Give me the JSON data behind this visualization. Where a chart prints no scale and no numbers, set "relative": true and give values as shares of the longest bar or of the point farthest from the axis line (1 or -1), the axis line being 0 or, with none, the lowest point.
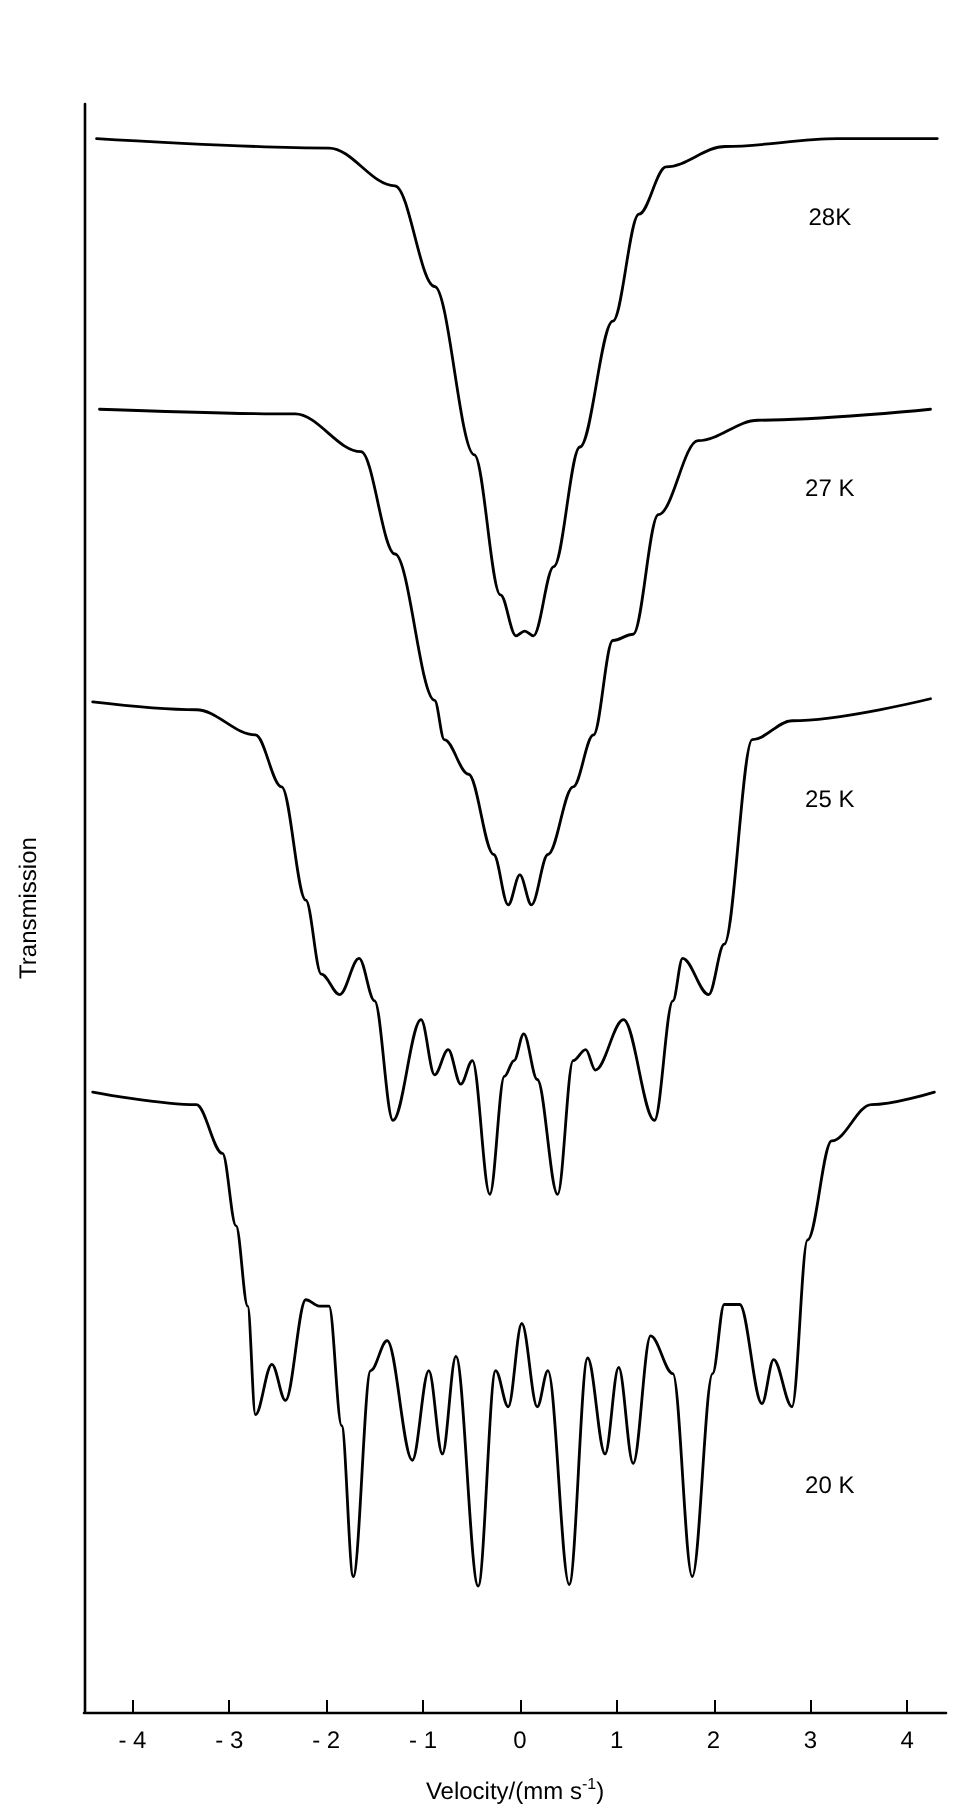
{
  "chart_data": {
    "type": "line",
    "relative": true,
    "xlabel": "Velocity/(mm s$^{-1}$)",
    "ylabel": "Transmission",
    "xlim": [
      -4.5,
      4.4
    ],
    "xticks": [
      -4,
      -3,
      -2,
      -1,
      0,
      1,
      2,
      3,
      4
    ],
    "grid": false,
    "legend": false,
    "marker": "none",
    "line_style": "solid",
    "series": [
      {
        "name": "28K",
        "color": "#000000",
        "x": [
          -4.37,
          -1.97,
          -1.29,
          -0.88,
          -0.47,
          -0.2,
          -0.04,
          0.05,
          0.14,
          0.35,
          0.62,
          0.96,
          1.23,
          1.51,
          2.12,
          3.28,
          4.31
        ],
        "values": [
          1.0,
          0.994,
          0.97,
          0.906,
          0.799,
          0.71,
          0.684,
          0.687,
          0.684,
          0.728,
          0.804,
          0.884,
          0.952,
          0.982,
          0.995,
          1.0,
          1.0
        ]
      },
      {
        "name": "27 K",
        "color": "#000000",
        "x": [
          -4.34,
          -2.32,
          -1.64,
          -1.29,
          -0.88,
          -0.78,
          -0.53,
          -0.27,
          -0.12,
          0,
          0.12,
          0.29,
          0.55,
          0.76,
          0.96,
          1.17,
          1.43,
          1.84,
          2.46,
          4.24
        ],
        "values": [
          0.828,
          0.825,
          0.801,
          0.736,
          0.643,
          0.618,
          0.596,
          0.545,
          0.513,
          0.532,
          0.513,
          0.545,
          0.588,
          0.621,
          0.681,
          0.685,
          0.761,
          0.808,
          0.821,
          0.828
        ]
      },
      {
        "name": "25 K",
        "color": "#000000",
        "x": [
          -4.41,
          -3.34,
          -2.73,
          -2.46,
          -2.21,
          -2.05,
          -1.86,
          -1.66,
          -1.5,
          -1.31,
          -1.02,
          -0.88,
          -0.74,
          -0.61,
          -0.49,
          -0.31,
          -0.16,
          -0.06,
          0.04,
          0.18,
          0.39,
          0.55,
          0.68,
          0.78,
          1.07,
          1.39,
          1.58,
          1.68,
          1.95,
          2.11,
          2.4,
          2.81,
          4.24
        ],
        "values": [
          0.642,
          0.637,
          0.621,
          0.588,
          0.516,
          0.469,
          0.456,
          0.479,
          0.452,
          0.376,
          0.44,
          0.405,
          0.421,
          0.399,
          0.414,
          0.329,
          0.404,
          0.414,
          0.431,
          0.402,
          0.329,
          0.414,
          0.421,
          0.408,
          0.44,
          0.376,
          0.452,
          0.479,
          0.456,
          0.488,
          0.618,
          0.63,
          0.644
        ]
      },
      {
        "name": "20 K",
        "color": "#000000",
        "x": [
          -4.41,
          -3.34,
          -3.07,
          -2.93,
          -2.81,
          -2.73,
          -2.56,
          -2.42,
          -2.21,
          -2.07,
          -1.97,
          -1.84,
          -1.72,
          -1.54,
          -1.37,
          -1.11,
          -0.94,
          -0.8,
          -0.66,
          -0.43,
          -0.25,
          -0.12,
          0.02,
          0.18,
          0.29,
          0.51,
          0.7,
          0.88,
          1.02,
          1.17,
          1.35,
          1.58,
          1.78,
          1.99,
          2.11,
          2.27,
          2.5,
          2.62,
          2.81,
          2.97,
          3.22,
          3.63,
          4.28
        ],
        "values": [
          0.394,
          0.386,
          0.355,
          0.309,
          0.258,
          0.189,
          0.221,
          0.198,
          0.262,
          0.258,
          0.258,
          0.182,
          0.086,
          0.217,
          0.236,
          0.16,
          0.217,
          0.164,
          0.226,
          0.08,
          0.217,
          0.194,
          0.247,
          0.194,
          0.217,
          0.081,
          0.225,
          0.164,
          0.219,
          0.158,
          0.239,
          0.215,
          0.086,
          0.215,
          0.259,
          0.259,
          0.196,
          0.224,
          0.194,
          0.3,
          0.363,
          0.386,
          0.394
        ]
      }
    ]
  }
}
